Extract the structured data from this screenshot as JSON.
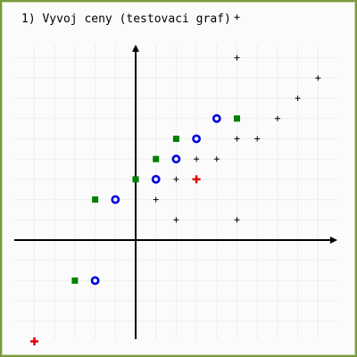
{
  "chart_data": {
    "type": "scatter",
    "title": "1) Vyvoj ceny (testovaci graf)",
    "xlabel": "",
    "ylabel": "",
    "xlim": [
      -6,
      10
    ],
    "ylim": [
      -6,
      12
    ],
    "grid": true,
    "legend": "none",
    "colors": {
      "axis": "#000000",
      "grid": "#eeeeee",
      "cross_small": "#000000",
      "cross_red": "#e00000",
      "square": "#008000",
      "ring": "#0000e0"
    },
    "series": [
      {
        "marker": "cross-small",
        "color": "#000000",
        "points": [
          [
            5,
            11
          ],
          [
            5,
            9
          ],
          [
            9,
            8
          ],
          [
            8,
            7
          ],
          [
            7,
            6
          ],
          [
            5,
            5
          ],
          [
            6,
            5
          ],
          [
            3,
            4
          ],
          [
            4,
            4
          ],
          [
            2,
            3
          ],
          [
            1,
            2
          ],
          [
            2,
            1
          ],
          [
            5,
            1
          ]
        ]
      },
      {
        "marker": "cross-red",
        "color": "#e00000",
        "points": [
          [
            3,
            3
          ],
          [
            -5,
            -5
          ]
        ]
      },
      {
        "marker": "square",
        "color": "#008000",
        "points": [
          [
            5,
            6
          ],
          [
            2,
            5
          ],
          [
            1,
            4
          ],
          [
            0,
            3
          ],
          [
            -2,
            2
          ],
          [
            -3,
            -2
          ]
        ]
      },
      {
        "marker": "ring",
        "color": "#0000e0",
        "points": [
          [
            4,
            6
          ],
          [
            3,
            5
          ],
          [
            2,
            4
          ],
          [
            1,
            3
          ],
          [
            -1,
            2
          ],
          [
            -2,
            -2
          ]
        ]
      }
    ]
  }
}
